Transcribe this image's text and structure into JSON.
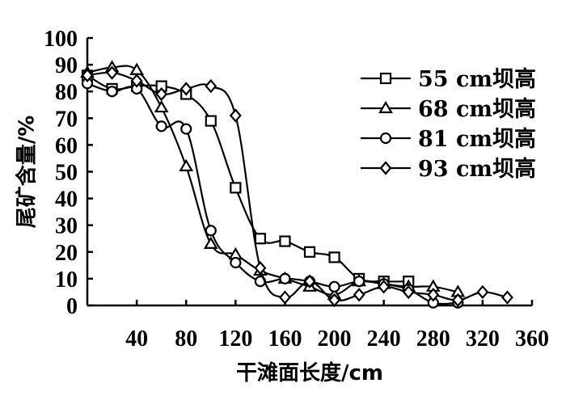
{
  "chart_data": {
    "type": "line",
    "xlabel": "干滩面长度/cm",
    "ylabel": "尾矿含量/%",
    "xlim": [
      0,
      360
    ],
    "ylim": [
      0,
      100
    ],
    "x_ticks": [
      40,
      80,
      120,
      160,
      200,
      240,
      280,
      320,
      360
    ],
    "y_ticks": [
      0,
      10,
      20,
      30,
      40,
      50,
      60,
      70,
      80,
      90,
      100
    ],
    "grid": false,
    "legend_position": "top-right",
    "series": [
      {
        "name": "55 cm坝高",
        "marker": "square",
        "x": [
          0,
          20,
          40,
          60,
          80,
          100,
          120,
          140,
          160,
          180,
          200,
          220,
          240,
          260
        ],
        "y": [
          86,
          81,
          82,
          82,
          79,
          69,
          44,
          25,
          24,
          20,
          18,
          10,
          9,
          9
        ]
      },
      {
        "name": "68 cm坝高",
        "marker": "triangle",
        "x": [
          0,
          20,
          40,
          60,
          80,
          100,
          120,
          140,
          160,
          180,
          200,
          220,
          240,
          260,
          280,
          300
        ],
        "y": [
          87,
          89,
          88,
          74,
          52,
          23,
          19,
          13,
          10,
          7,
          4,
          9,
          8,
          7,
          7,
          5
        ]
      },
      {
        "name": "81 cm坝高",
        "marker": "circle",
        "x": [
          0,
          20,
          40,
          60,
          80,
          100,
          120,
          140,
          160,
          180,
          200,
          220,
          240,
          260,
          280,
          300
        ],
        "y": [
          83,
          80,
          81,
          67,
          66,
          28,
          16,
          9,
          10,
          9,
          7,
          9,
          8,
          6,
          1,
          1
        ]
      },
      {
        "name": "93 cm坝高",
        "marker": "diamond",
        "x": [
          0,
          20,
          40,
          60,
          80,
          100,
          120,
          140,
          160,
          180,
          200,
          220,
          240,
          260,
          280,
          300,
          320,
          340
        ],
        "y": [
          86,
          87,
          84,
          79,
          81,
          82,
          71,
          14,
          3,
          9,
          2,
          4,
          7,
          5,
          4,
          2,
          5,
          3
        ]
      }
    ]
  }
}
